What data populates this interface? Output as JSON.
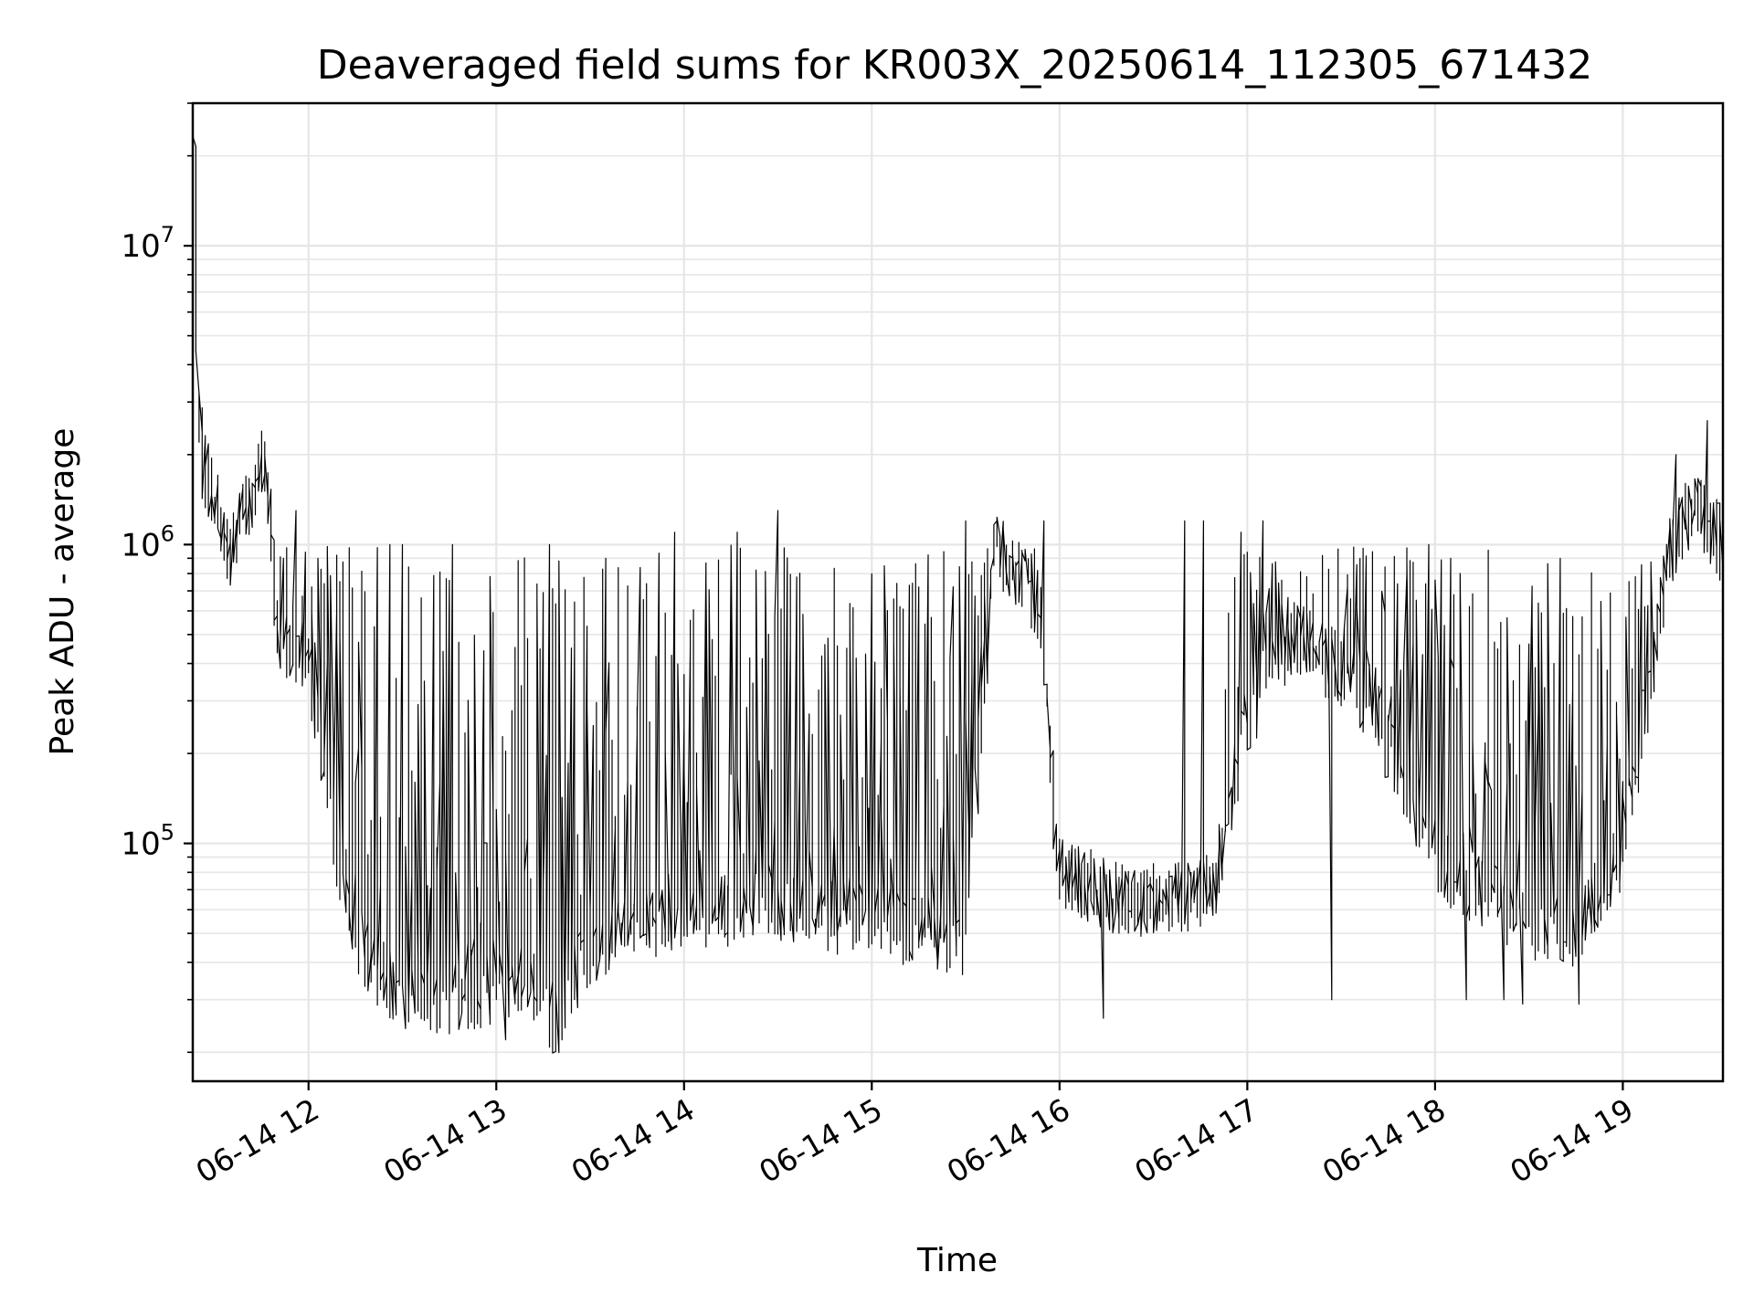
{
  "chart_data": {
    "type": "line",
    "title": "Deaveraged field sums for KR003X_20250614_112305_671432",
    "xlabel": "Time",
    "ylabel": "Peak ADU - average",
    "yscale": "log",
    "ylim": [
      16000,
      30000000
    ],
    "xlim": [
      "2025-06-14 11:23",
      "2025-06-14 19:32"
    ],
    "grid": true,
    "line_color": "#000000",
    "grid_color": "#e6e6e6",
    "x_ticks": [
      {
        "time": "2025-06-14 12:00",
        "label": "06-14 12"
      },
      {
        "time": "2025-06-14 13:00",
        "label": "06-14 13"
      },
      {
        "time": "2025-06-14 14:00",
        "label": "06-14 14"
      },
      {
        "time": "2025-06-14 15:00",
        "label": "06-14 15"
      },
      {
        "time": "2025-06-14 16:00",
        "label": "06-14 16"
      },
      {
        "time": "2025-06-14 17:00",
        "label": "06-14 17"
      },
      {
        "time": "2025-06-14 18:00",
        "label": "06-14 18"
      },
      {
        "time": "2025-06-14 19:00",
        "label": "06-14 19"
      }
    ],
    "y_ticks": [
      {
        "value": 100000,
        "base": "10",
        "exp": "5"
      },
      {
        "value": 1000000,
        "base": "10",
        "exp": "6"
      },
      {
        "value": 10000000,
        "base": "10",
        "exp": "7"
      }
    ],
    "series": [
      {
        "points": [
          [
            "2025-06-14 11:23",
            4000000
          ],
          [
            "2025-06-14 11:24",
            22000000
          ],
          [
            "2025-06-14 11:25",
            3000000
          ],
          [
            "2025-06-14 11:27",
            1800000
          ],
          [
            "2025-06-14 11:30",
            1500000
          ],
          [
            "2025-06-14 11:33",
            1100000
          ],
          [
            "2025-06-14 11:36",
            950000
          ],
          [
            "2025-06-14 11:39",
            1200000
          ],
          [
            "2025-06-14 11:42",
            1500000
          ],
          [
            "2025-06-14 11:45",
            1900000
          ],
          [
            "2025-06-14 11:48",
            1400000
          ],
          [
            "2025-06-14 11:50",
            500000
          ],
          [
            "2025-06-14 11:55",
            450000
          ],
          [
            "2025-06-14 12:00",
            400000
          ],
          [
            "2025-06-14 12:05",
            200000
          ],
          [
            "2025-06-14 12:10",
            90000
          ],
          [
            "2025-06-14 12:15",
            50000
          ],
          [
            "2025-06-14 12:25",
            35000
          ],
          [
            "2025-06-14 12:40",
            30000
          ],
          [
            "2025-06-14 12:55",
            32000
          ],
          [
            "2025-06-14 13:10",
            35000
          ],
          [
            "2025-06-14 13:20",
            25000
          ],
          [
            "2025-06-14 13:30",
            45000
          ],
          [
            "2025-06-14 14:00",
            60000
          ],
          [
            "2025-06-14 14:30",
            60000
          ],
          [
            "2025-06-14 15:00",
            55000
          ],
          [
            "2025-06-14 15:30",
            48000
          ],
          [
            "2025-06-14 15:40",
            1000000
          ],
          [
            "2025-06-14 15:55",
            600000
          ],
          [
            "2025-06-14 16:00",
            80000
          ],
          [
            "2025-06-14 16:20",
            65000
          ],
          [
            "2025-06-14 16:40",
            65000
          ],
          [
            "2025-06-14 16:50",
            70000
          ],
          [
            "2025-06-14 17:00",
            250000
          ],
          [
            "2025-06-14 17:15",
            500000
          ],
          [
            "2025-06-14 17:40",
            300000
          ],
          [
            "2025-06-14 17:55",
            120000
          ],
          [
            "2025-06-14 18:05",
            80000
          ],
          [
            "2025-06-14 18:30",
            55000
          ],
          [
            "2025-06-14 18:45",
            50000
          ],
          [
            "2025-06-14 19:00",
            90000
          ],
          [
            "2025-06-14 19:05",
            180000
          ],
          [
            "2025-06-14 19:10",
            400000
          ],
          [
            "2025-06-14 19:15",
            900000
          ],
          [
            "2025-06-14 19:20",
            1200000
          ],
          [
            "2025-06-14 19:25",
            1300000
          ],
          [
            "2025-06-14 19:32",
            1000000
          ]
        ],
        "spikes": [
          [
            "2025-06-14 11:37",
            1200000
          ],
          [
            "2025-06-14 11:52",
            900000
          ],
          [
            "2025-06-14 11:56",
            1300000
          ],
          [
            "2025-06-14 12:26",
            1000000
          ],
          [
            "2025-06-14 12:30",
            1000000
          ],
          [
            "2025-06-14 12:46",
            1000000
          ],
          [
            "2025-06-14 13:17",
            1000000
          ],
          [
            "2025-06-14 13:35",
            900000
          ],
          [
            "2025-06-14 13:57",
            1100000
          ],
          [
            "2025-06-14 14:17",
            1100000
          ],
          [
            "2025-06-14 14:30",
            1300000
          ],
          [
            "2025-06-14 15:30",
            1200000
          ],
          [
            "2025-06-14 15:40",
            1200000
          ],
          [
            "2025-06-14 15:55",
            1200000
          ],
          [
            "2025-06-14 16:40",
            1200000
          ],
          [
            "2025-06-14 16:46",
            1200000
          ],
          [
            "2025-06-14 16:58",
            1100000
          ],
          [
            "2025-06-14 17:05",
            1200000
          ],
          [
            "2025-06-14 17:58",
            1000000
          ],
          [
            "2025-06-14 18:05",
            900000
          ],
          [
            "2025-06-14 18:40",
            900000
          ],
          [
            "2025-06-14 19:17",
            2000000
          ],
          [
            "2025-06-14 19:27",
            2600000
          ]
        ],
        "dips": [
          [
            "2025-06-14 12:31",
            24000
          ],
          [
            "2025-06-14 13:03",
            22000
          ],
          [
            "2025-06-14 13:21",
            22000
          ],
          [
            "2025-06-14 16:14",
            26000
          ],
          [
            "2025-06-14 17:27",
            30000
          ],
          [
            "2025-06-14 18:10",
            30000
          ],
          [
            "2025-06-14 18:22",
            30000
          ],
          [
            "2025-06-14 18:28",
            29000
          ],
          [
            "2025-06-14 18:46",
            29000
          ]
        ]
      }
    ]
  }
}
